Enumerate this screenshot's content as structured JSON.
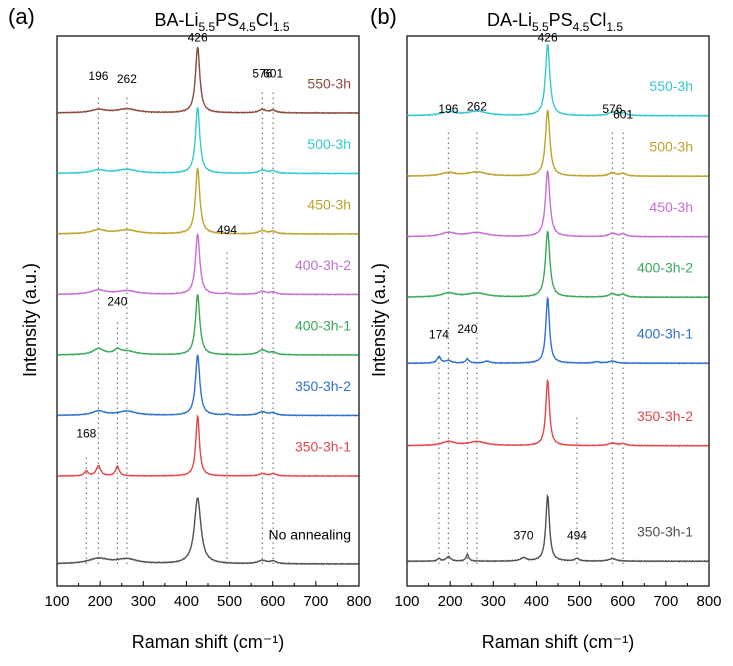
{
  "chart_data": [
    {
      "panel_label": "(a)",
      "type": "line",
      "title_parts": {
        "prefix": "BA-Li",
        "sub1": "5.5",
        "mid1": "PS",
        "sub2": "4.5",
        "mid2": "Cl",
        "sub3": "1.5"
      },
      "xlabel": "Raman shift (cm⁻¹)",
      "ylabel": "Intensity (a.u.)",
      "xlim": [
        100,
        800
      ],
      "xticks": [
        "100",
        "200",
        "300",
        "400",
        "500",
        "600",
        "700",
        "800"
      ],
      "series": [
        {
          "name": "550-3h",
          "color": "#8B4A3E",
          "baseline": 0.86,
          "amp": 0.12,
          "peaks": [
            [
              196,
              0.05,
              20
            ],
            [
              262,
              0.06,
              28
            ],
            [
              426,
              1.0,
              6
            ],
            [
              576,
              0.05,
              10
            ],
            [
              601,
              0.04,
              8
            ]
          ]
        },
        {
          "name": "500-3h",
          "color": "#35C8D0",
          "baseline": 0.75,
          "amp": 0.12,
          "peaks": [
            [
              196,
              0.05,
              20
            ],
            [
              262,
              0.06,
              28
            ],
            [
              426,
              1.0,
              6
            ],
            [
              576,
              0.05,
              10
            ],
            [
              601,
              0.04,
              8
            ]
          ]
        },
        {
          "name": "450-3h",
          "color": "#BFA22C",
          "baseline": 0.64,
          "amp": 0.12,
          "peaks": [
            [
              196,
              0.06,
              20
            ],
            [
              262,
              0.06,
              28
            ],
            [
              426,
              1.0,
              6
            ],
            [
              576,
              0.05,
              10
            ],
            [
              601,
              0.04,
              8
            ]
          ]
        },
        {
          "name": "400-3h-2",
          "color": "#C86DD6",
          "baseline": 0.53,
          "amp": 0.11,
          "peaks": [
            [
              196,
              0.07,
              20
            ],
            [
              262,
              0.06,
              28
            ],
            [
              426,
              1.0,
              6
            ],
            [
              494,
              0.02,
              6
            ],
            [
              576,
              0.05,
              10
            ],
            [
              601,
              0.04,
              8
            ]
          ]
        },
        {
          "name": "400-3h-1",
          "color": "#3AA85A",
          "baseline": 0.42,
          "amp": 0.11,
          "peaks": [
            [
              196,
              0.1,
              15
            ],
            [
              240,
              0.07,
              8
            ],
            [
              262,
              0.06,
              25
            ],
            [
              426,
              1.0,
              6
            ],
            [
              576,
              0.08,
              12
            ],
            [
              601,
              0.04,
              8
            ]
          ]
        },
        {
          "name": "350-3h-2",
          "color": "#2F6FD0",
          "baseline": 0.31,
          "amp": 0.11,
          "peaks": [
            [
              196,
              0.07,
              18
            ],
            [
              262,
              0.07,
              25
            ],
            [
              426,
              1.0,
              6
            ],
            [
              494,
              0.02,
              6
            ],
            [
              576,
              0.06,
              12
            ],
            [
              601,
              0.04,
              8
            ]
          ]
        },
        {
          "name": "350-3h-1",
          "color": "#E2474C",
          "baseline": 0.2,
          "amp": 0.11,
          "peaks": [
            [
              168,
              0.08,
              5
            ],
            [
              196,
              0.17,
              6
            ],
            [
              240,
              0.16,
              5
            ],
            [
              426,
              1.0,
              5
            ],
            [
              576,
              0.04,
              8
            ],
            [
              601,
              0.04,
              8
            ]
          ]
        },
        {
          "name": "No annealing",
          "color": "#505050",
          "baseline": 0.04,
          "amp": 0.12,
          "peaks": [
            [
              196,
              0.08,
              28
            ],
            [
              262,
              0.07,
              28
            ],
            [
              426,
              1.0,
              9
            ],
            [
              576,
              0.05,
              12
            ],
            [
              601,
              0.04,
              8
            ]
          ]
        }
      ],
      "peak_labels": [
        {
          "text": "426",
          "x": 426,
          "y": 0.99
        },
        {
          "text": "196",
          "x": 196,
          "y": 0.92
        },
        {
          "text": "262",
          "x": 262,
          "y": 0.915
        },
        {
          "text": "576",
          "x": 576,
          "y": 0.925
        },
        {
          "text": "601",
          "x": 601,
          "y": 0.925
        },
        {
          "text": "494",
          "x": 494,
          "y": 0.64
        },
        {
          "text": "240",
          "x": 240,
          "y": 0.51
        },
        {
          "text": "168",
          "x": 168,
          "y": 0.27
        }
      ],
      "guide_lines": [
        {
          "x": 196,
          "y1": 0.04,
          "y2": 0.89
        },
        {
          "x": 262,
          "y1": 0.04,
          "y2": 0.89
        },
        {
          "x": 576,
          "y1": 0.04,
          "y2": 0.9
        },
        {
          "x": 601,
          "y1": 0.04,
          "y2": 0.9
        },
        {
          "x": 494,
          "y1": 0.04,
          "y2": 0.61
        },
        {
          "x": 240,
          "y1": 0.04,
          "y2": 0.48
        },
        {
          "x": 168,
          "y1": 0.04,
          "y2": 0.24
        }
      ],
      "legend_placement": "right of each trace"
    },
    {
      "panel_label": "(b)",
      "type": "line",
      "title_parts": {
        "prefix": "DA-Li",
        "sub1": "5.5",
        "mid1": "PS",
        "sub2": "4.5",
        "mid2": "Cl",
        "sub3": "1.5"
      },
      "xlabel": "Raman shift (cm⁻¹)",
      "ylabel": "Intensity (a.u.)",
      "xlim": [
        100,
        800
      ],
      "xticks": [
        "100",
        "200",
        "300",
        "400",
        "500",
        "600",
        "700",
        "800"
      ],
      "series": [
        {
          "name": "550-3h",
          "color": "#35C8D0",
          "baseline": 0.855,
          "amp": 0.13,
          "peaks": [
            [
              196,
              0.05,
              20
            ],
            [
              262,
              0.06,
              28
            ],
            [
              426,
              1.0,
              6
            ],
            [
              576,
              0.05,
              10
            ],
            [
              601,
              0.04,
              8
            ]
          ]
        },
        {
          "name": "500-3h",
          "color": "#BFA22C",
          "baseline": 0.745,
          "amp": 0.12,
          "peaks": [
            [
              196,
              0.05,
              20
            ],
            [
              262,
              0.06,
              28
            ],
            [
              426,
              1.0,
              6
            ],
            [
              576,
              0.05,
              10
            ],
            [
              601,
              0.04,
              8
            ]
          ]
        },
        {
          "name": "450-3h",
          "color": "#C86DD6",
          "baseline": 0.635,
          "amp": 0.12,
          "peaks": [
            [
              196,
              0.06,
              20
            ],
            [
              262,
              0.06,
              28
            ],
            [
              426,
              1.0,
              6
            ],
            [
              576,
              0.05,
              10
            ],
            [
              601,
              0.04,
              8
            ]
          ]
        },
        {
          "name": "400-3h-2",
          "color": "#3AA85A",
          "baseline": 0.525,
          "amp": 0.12,
          "peaks": [
            [
              196,
              0.06,
              20
            ],
            [
              262,
              0.06,
              28
            ],
            [
              426,
              1.0,
              6
            ],
            [
              576,
              0.05,
              10
            ],
            [
              601,
              0.04,
              8
            ]
          ]
        },
        {
          "name": "400-3h-1",
          "color": "#2F6FD0",
          "baseline": 0.405,
          "amp": 0.12,
          "peaks": [
            [
              174,
              0.1,
              5
            ],
            [
              196,
              0.04,
              8
            ],
            [
              240,
              0.06,
              5
            ],
            [
              285,
              0.03,
              8
            ],
            [
              426,
              1.0,
              5
            ],
            [
              540,
              0.02,
              8
            ],
            [
              576,
              0.03,
              10
            ]
          ]
        },
        {
          "name": "350-3h-2",
          "color": "#E2474C",
          "baseline": 0.255,
          "amp": 0.12,
          "peaks": [
            [
              196,
              0.06,
              18
            ],
            [
              262,
              0.06,
              25
            ],
            [
              426,
              1.0,
              5
            ],
            [
              576,
              0.04,
              10
            ],
            [
              601,
              0.03,
              8
            ]
          ]
        },
        {
          "name": "350-3h-1",
          "color": "#505050",
          "baseline": 0.045,
          "amp": 0.12,
          "peaks": [
            [
              174,
              0.04,
              4
            ],
            [
              196,
              0.07,
              6
            ],
            [
              240,
              0.1,
              4
            ],
            [
              370,
              0.05,
              8
            ],
            [
              426,
              1.0,
              5
            ],
            [
              494,
              0.04,
              6
            ],
            [
              576,
              0.04,
              10
            ]
          ]
        }
      ],
      "peak_labels": [
        {
          "text": "426",
          "x": 426,
          "y": 0.99
        },
        {
          "text": "196",
          "x": 196,
          "y": 0.86
        },
        {
          "text": "262",
          "x": 262,
          "y": 0.865
        },
        {
          "text": "576",
          "x": 576,
          "y": 0.86
        },
        {
          "text": "601",
          "x": 601,
          "y": 0.85
        },
        {
          "text": "174",
          "x": 174,
          "y": 0.45
        },
        {
          "text": "240",
          "x": 240,
          "y": 0.46
        },
        {
          "text": "370",
          "x": 370,
          "y": 0.085
        },
        {
          "text": "494",
          "x": 494,
          "y": 0.085
        }
      ],
      "guide_lines": [
        {
          "x": 196,
          "y1": 0.04,
          "y2": 0.83
        },
        {
          "x": 262,
          "y1": 0.04,
          "y2": 0.83
        },
        {
          "x": 576,
          "y1": 0.04,
          "y2": 0.83
        },
        {
          "x": 601,
          "y1": 0.04,
          "y2": 0.83
        },
        {
          "x": 174,
          "y1": 0.04,
          "y2": 0.42
        },
        {
          "x": 240,
          "y1": 0.04,
          "y2": 0.42
        },
        {
          "x": 494,
          "y1": 0.04,
          "y2": 0.31
        }
      ],
      "legend_placement": "right of each trace"
    }
  ]
}
